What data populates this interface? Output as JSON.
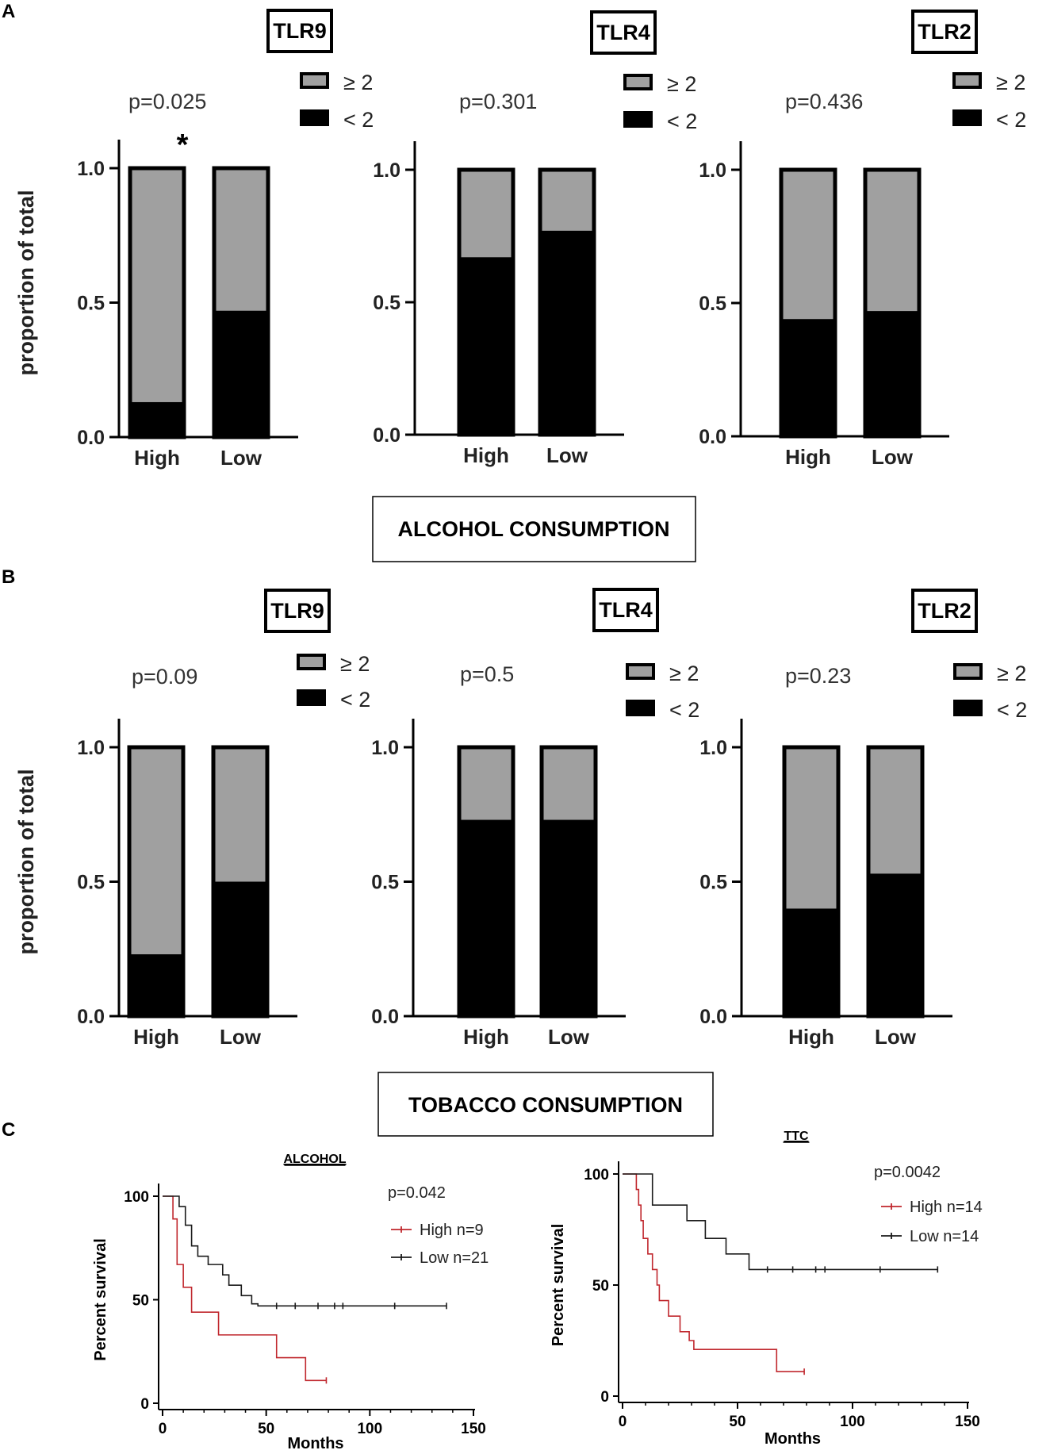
{
  "panel_labels": {
    "A": "A",
    "B": "B",
    "C": "C"
  },
  "section_titles": {
    "alcohol": "ALCOHOL CONSUMPTION",
    "tobacco": "TOBACCO  CONSUMPTION"
  },
  "colors": {
    "high_fill": "#000000",
    "low_fill": "#a0a0a0",
    "km_high": "#c0272d",
    "km_low": "#1a1a1a"
  },
  "chart_data": [
    {
      "id": "A-TLR9",
      "type": "bar",
      "stacked": true,
      "title": "TLR9",
      "pvalue": "p=0.025",
      "star": "*",
      "categories": [
        "High",
        "Low"
      ],
      "ylabel": "proportion of total",
      "ylim": [
        0,
        1
      ],
      "yticks": [
        "0.0",
        "0.5",
        "1.0"
      ],
      "legend": [
        "≥ 2",
        "< 2"
      ],
      "series": [
        {
          "name": "< 2",
          "values": [
            0.13,
            0.47
          ]
        },
        {
          "name": "≥ 2",
          "values": [
            0.87,
            0.53
          ]
        }
      ]
    },
    {
      "id": "A-TLR4",
      "type": "bar",
      "stacked": true,
      "title": "TLR4",
      "pvalue": "p=0.301",
      "categories": [
        "High",
        "Low"
      ],
      "ylabel": "",
      "ylim": [
        0,
        1
      ],
      "yticks": [
        "0.0",
        "0.5",
        "1.0"
      ],
      "legend": [
        "≥ 2",
        "< 2"
      ],
      "series": [
        {
          "name": "< 2",
          "values": [
            0.67,
            0.77
          ]
        },
        {
          "name": "≥ 2",
          "values": [
            0.33,
            0.23
          ]
        }
      ]
    },
    {
      "id": "A-TLR2",
      "type": "bar",
      "stacked": true,
      "title": "TLR2",
      "pvalue": "p=0.436",
      "categories": [
        "High",
        "Low"
      ],
      "ylabel": "",
      "ylim": [
        0,
        1
      ],
      "yticks": [
        "0.0",
        "0.5",
        "1.0"
      ],
      "legend": [
        "≥ 2",
        "< 2"
      ],
      "series": [
        {
          "name": "< 2",
          "values": [
            0.44,
            0.47
          ]
        },
        {
          "name": "≥ 2",
          "values": [
            0.56,
            0.53
          ]
        }
      ]
    },
    {
      "id": "B-TLR9",
      "type": "bar",
      "stacked": true,
      "title": "TLR9",
      "pvalue": "p=0.09",
      "categories": [
        "High",
        "Low"
      ],
      "ylabel": "proportion of total",
      "ylim": [
        0,
        1
      ],
      "yticks": [
        "0.0",
        "0.5",
        "1.0"
      ],
      "legend": [
        "≥ 2",
        "< 2"
      ],
      "series": [
        {
          "name": "< 2",
          "values": [
            0.23,
            0.5
          ]
        },
        {
          "name": "≥ 2",
          "values": [
            0.77,
            0.5
          ]
        }
      ]
    },
    {
      "id": "B-TLR4",
      "type": "bar",
      "stacked": true,
      "title": "TLR4",
      "pvalue": "p=0.5",
      "categories": [
        "High",
        "Low"
      ],
      "ylabel": "",
      "ylim": [
        0,
        1
      ],
      "yticks": [
        "0.0",
        "0.5",
        "1.0"
      ],
      "legend": [
        "≥ 2",
        "< 2"
      ],
      "series": [
        {
          "name": "< 2",
          "values": [
            0.73,
            0.73
          ]
        },
        {
          "name": "≥ 2",
          "values": [
            0.27,
            0.27
          ]
        }
      ]
    },
    {
      "id": "B-TLR2",
      "type": "bar",
      "stacked": true,
      "title": "TLR2",
      "pvalue": "p=0.23",
      "categories": [
        "High",
        "Low"
      ],
      "ylabel": "",
      "ylim": [
        0,
        1
      ],
      "yticks": [
        "0.0",
        "0.5",
        "1.0"
      ],
      "legend": [
        "≥ 2",
        "< 2"
      ],
      "series": [
        {
          "name": "< 2",
          "values": [
            0.4,
            0.53
          ]
        },
        {
          "name": "≥ 2",
          "values": [
            0.6,
            0.47
          ]
        }
      ]
    },
    {
      "id": "C-ALCOHOL",
      "type": "line",
      "subtype": "kaplan-meier",
      "title": "ALCOHOL",
      "pvalue": "p=0.042",
      "xlabel": "Months",
      "ylabel": "Percent survival",
      "xlim": [
        0,
        150
      ],
      "ylim": [
        0,
        100
      ],
      "xticks": [
        "0",
        "50",
        "100",
        "150"
      ],
      "yticks": [
        "0",
        "50",
        "100"
      ],
      "series": [
        {
          "name": "High n=9",
          "x": [
            0,
            5,
            7,
            10,
            14,
            27,
            55,
            69,
            79
          ],
          "y": [
            100,
            89,
            67,
            56,
            44,
            33,
            22,
            11,
            11
          ],
          "censored": [
            [
              79,
              11
            ]
          ]
        },
        {
          "name": "Low n=21",
          "x": [
            0,
            8,
            11,
            14,
            17,
            22,
            29,
            32,
            38,
            43,
            46,
            137
          ],
          "y": [
            100,
            95,
            86,
            76,
            71,
            67,
            62,
            57,
            52,
            48,
            47,
            47
          ],
          "censored": [
            [
              55,
              47
            ],
            [
              64,
              47
            ],
            [
              75,
              47
            ],
            [
              83,
              47
            ],
            [
              87,
              47
            ],
            [
              112,
              47
            ],
            [
              137,
              47
            ]
          ]
        }
      ]
    },
    {
      "id": "C-TTC",
      "type": "line",
      "subtype": "kaplan-meier",
      "title": "TTC",
      "pvalue": "p=0.0042",
      "xlabel": "Months",
      "ylabel": "Percent survival",
      "xlim": [
        0,
        150
      ],
      "ylim": [
        0,
        100
      ],
      "xticks": [
        "0",
        "50",
        "100",
        "150"
      ],
      "yticks": [
        "0",
        "50",
        "100"
      ],
      "series": [
        {
          "name": "High n=14",
          "x": [
            0,
            6,
            7,
            8,
            9,
            11,
            13,
            15,
            16,
            20,
            25,
            29,
            31,
            67,
            79
          ],
          "y": [
            100,
            93,
            86,
            79,
            71,
            64,
            57,
            50,
            43,
            36,
            29,
            25,
            21,
            11,
            11
          ],
          "censored": [
            [
              79,
              11
            ]
          ]
        },
        {
          "name": "Low n=14",
          "x": [
            0,
            13,
            28,
            36,
            45,
            55,
            137
          ],
          "y": [
            100,
            86,
            79,
            71,
            64,
            57,
            57
          ],
          "censored": [
            [
              63,
              57
            ],
            [
              74,
              57
            ],
            [
              84,
              57
            ],
            [
              88,
              57
            ],
            [
              112,
              57
            ],
            [
              137,
              57
            ]
          ]
        }
      ]
    }
  ]
}
